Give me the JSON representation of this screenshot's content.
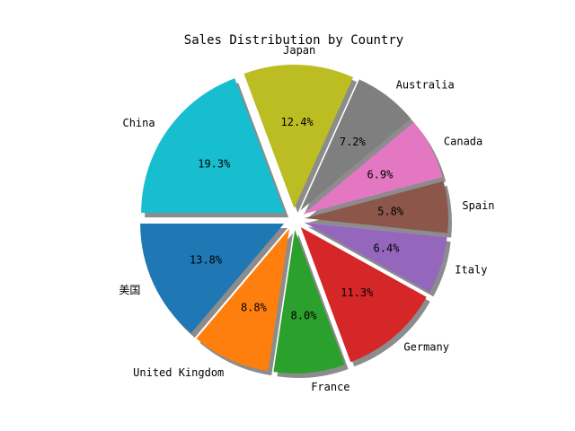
{
  "chart_data": {
    "type": "pie",
    "title": "Sales Distribution by Country",
    "start_angle_deg": 180,
    "direction": "counterclockwise",
    "shadow": true,
    "exploded": true,
    "slices": [
      {
        "label": "美国",
        "value": 13.8,
        "pct_label": "13.8%",
        "color": "#1f77b4"
      },
      {
        "label": "United Kingdom",
        "value": 8.8,
        "pct_label": "8.8%",
        "color": "#ff7f0e"
      },
      {
        "label": "France",
        "value": 8.0,
        "pct_label": "8.0%",
        "color": "#2ca02c"
      },
      {
        "label": "Germany",
        "value": 11.3,
        "pct_label": "11.3%",
        "color": "#d62728"
      },
      {
        "label": "Italy",
        "value": 6.4,
        "pct_label": "6.4%",
        "color": "#9467bd"
      },
      {
        "label": "Spain",
        "value": 5.8,
        "pct_label": "5.8%",
        "color": "#8c564b"
      },
      {
        "label": "Canada",
        "value": 6.9,
        "pct_label": "6.9%",
        "color": "#e377c2"
      },
      {
        "label": "Australia",
        "value": 7.2,
        "pct_label": "7.2%",
        "color": "#7f7f7f"
      },
      {
        "label": "Japan",
        "value": 12.4,
        "pct_label": "12.4%",
        "color": "#bcbd22"
      },
      {
        "label": "China",
        "value": 19.3,
        "pct_label": "19.3%",
        "color": "#17becf"
      }
    ]
  }
}
